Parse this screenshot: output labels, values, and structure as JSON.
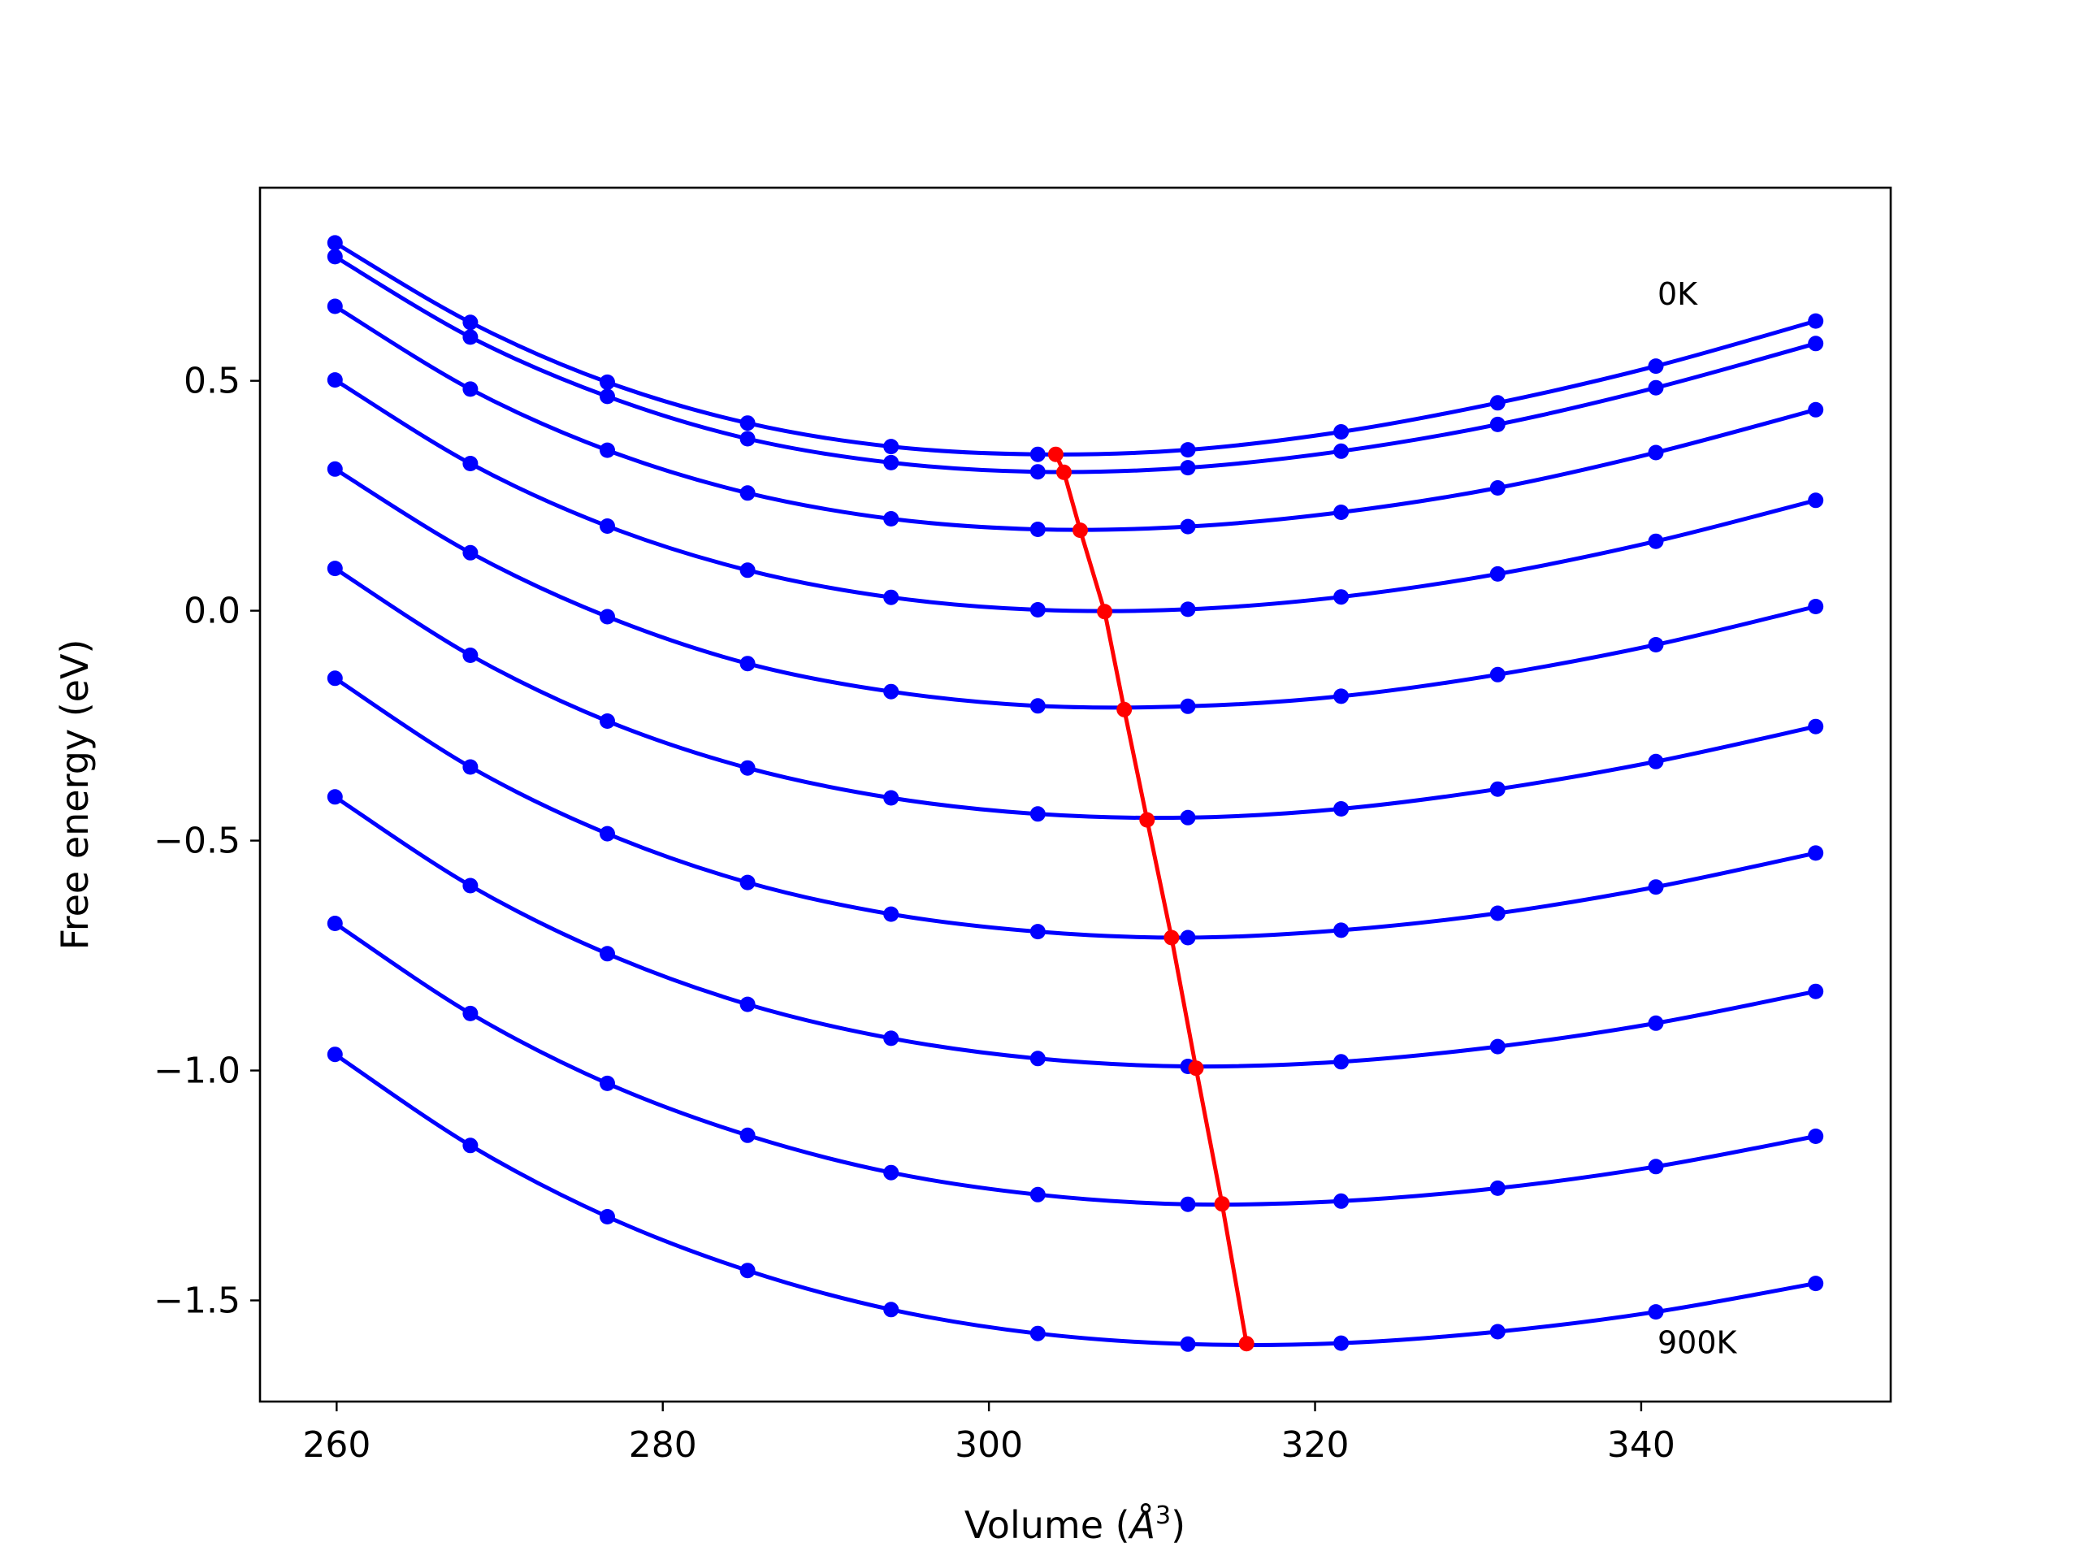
{
  "chart_data": {
    "type": "line",
    "title": "",
    "xlabel": "Volume (Å³)",
    "xlabel_base": "Volume (",
    "xlabel_symbol": "Å",
    "xlabel_sup": "3",
    "xlabel_tail": ")",
    "ylabel": "Free energy (eV)",
    "xlim": [
      255.3,
      355.3
    ],
    "ylim": [
      -1.72,
      0.92
    ],
    "xticks": [
      260,
      280,
      300,
      320,
      340
    ],
    "xtick_labels": [
      "260",
      "280",
      "300",
      "320",
      "340"
    ],
    "yticks": [
      0.5,
      0.0,
      -0.5,
      -1.0,
      -1.5
    ],
    "ytick_labels": [
      "0.5",
      "0.0",
      "−0.5",
      "−1.0",
      "−1.5"
    ],
    "grid": false,
    "annotations": [
      {
        "text": "0K",
        "x": 341,
        "y": 0.69
      },
      {
        "text": "900K",
        "x": 341,
        "y": -1.59
      }
    ],
    "x": [
      259.9,
      268.2,
      276.6,
      285.2,
      294.0,
      303.0,
      312.2,
      321.6,
      331.2,
      340.9,
      350.7
    ],
    "series_color": "#0000ff",
    "min_line_color": "#ff0000",
    "series": [
      {
        "values": [
          0.8,
          0.627,
          0.497,
          0.408,
          0.357,
          0.34,
          0.35,
          0.389,
          0.452,
          0.532,
          0.63
        ]
      },
      {
        "values": [
          0.77,
          0.595,
          0.466,
          0.374,
          0.322,
          0.302,
          0.311,
          0.347,
          0.405,
          0.485,
          0.581
        ]
      },
      {
        "values": [
          0.662,
          0.482,
          0.349,
          0.256,
          0.2,
          0.177,
          0.183,
          0.214,
          0.267,
          0.344,
          0.437
        ]
      },
      {
        "values": [
          0.502,
          0.32,
          0.184,
          0.088,
          0.029,
          0.002,
          0.003,
          0.03,
          0.08,
          0.151,
          0.24
        ]
      },
      {
        "values": [
          0.308,
          0.126,
          -0.013,
          -0.115,
          -0.176,
          -0.207,
          -0.208,
          -0.186,
          -0.139,
          -0.074,
          0.009
        ]
      },
      {
        "values": [
          0.092,
          -0.097,
          -0.24,
          -0.342,
          -0.407,
          -0.442,
          -0.45,
          -0.431,
          -0.388,
          -0.328,
          -0.252
        ]
      },
      {
        "values": [
          -0.147,
          -0.34,
          -0.485,
          -0.591,
          -0.66,
          -0.698,
          -0.711,
          -0.695,
          -0.658,
          -0.601,
          -0.527
        ]
      },
      {
        "values": [
          -0.405,
          -0.598,
          -0.746,
          -0.856,
          -0.93,
          -0.974,
          -0.991,
          -0.981,
          -0.948,
          -0.897,
          -0.828
        ]
      },
      {
        "values": [
          -0.68,
          -0.876,
          -1.028,
          -1.141,
          -1.222,
          -1.27,
          -1.291,
          -1.284,
          -1.256,
          -1.209,
          -1.143
        ]
      },
      {
        "values": [
          -0.965,
          -1.163,
          -1.318,
          -1.435,
          -1.52,
          -1.572,
          -1.595,
          -1.593,
          -1.568,
          -1.525,
          -1.463
        ]
      }
    ],
    "minima": [
      {
        "x": 304.1,
        "y": 0.34
      },
      {
        "x": 304.6,
        "y": 0.301
      },
      {
        "x": 305.6,
        "y": 0.175
      },
      {
        "x": 307.1,
        "y": -0.002
      },
      {
        "x": 308.3,
        "y": -0.215
      },
      {
        "x": 309.7,
        "y": -0.455
      },
      {
        "x": 311.2,
        "y": -0.711
      },
      {
        "x": 312.7,
        "y": -0.995
      },
      {
        "x": 314.3,
        "y": -1.29
      },
      {
        "x": 315.8,
        "y": -1.594
      }
    ]
  }
}
